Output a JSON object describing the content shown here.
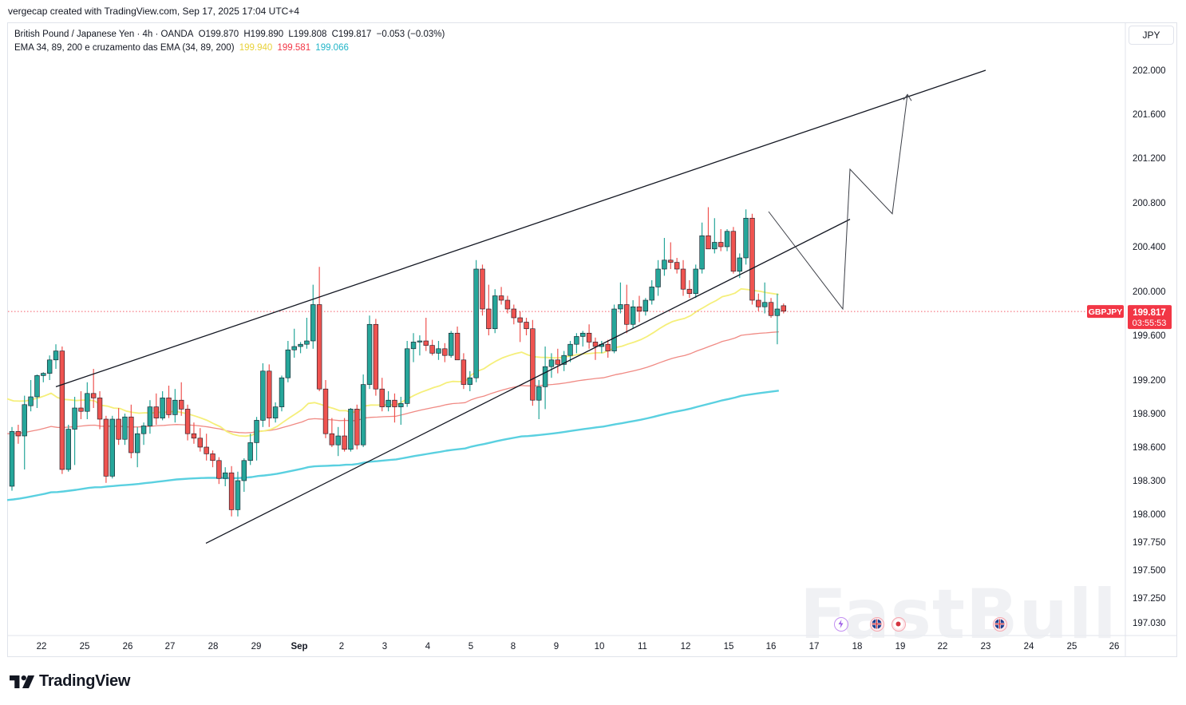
{
  "header": {
    "credit": "vergecap created with TradingView.com, Sep 17, 2025 17:04 UTC+4"
  },
  "legend": {
    "instrument": "British Pound / Japanese Yen · 4h · OANDA",
    "open": "O199.870",
    "high": "H199.890",
    "low": "L199.808",
    "close": "C199.817",
    "change": "−0.053 (−0.03%)",
    "indicator": "EMA 34, 89, 200 e cruzamento das EMA (34, 89, 200)",
    "ema34": "199.940",
    "ema89": "199.581",
    "ema200": "199.066"
  },
  "currency": "JPY",
  "price_tag": {
    "symbol": "GBPJPY",
    "price": "199.817",
    "countdown": "03:55:53"
  },
  "branding": {
    "logo_text": "TradingView",
    "watermark": "FastBull"
  },
  "colors": {
    "up": "#26a69a",
    "down": "#ef5350",
    "ema34": "#f5ef7a",
    "ema89": "#f08a84",
    "ema200": "#5ad0e0",
    "price_tag": "#f23645",
    "ema34_text": "#e8d23a",
    "ema89_text": "#f23645",
    "ema200_text": "#22b5c8"
  },
  "chart_data": {
    "type": "candlestick",
    "symbol": "GBPJPY",
    "timeframe": "4h",
    "y_ticks": [
      "202.000",
      "201.600",
      "201.200",
      "200.800",
      "200.400",
      "200.000",
      "199.600",
      "199.200",
      "198.900",
      "198.600",
      "198.300",
      "198.000",
      "197.750",
      "197.500",
      "197.250",
      "197.030"
    ],
    "x_ticks": [
      "22",
      "25",
      "26",
      "27",
      "28",
      "29",
      "Sep",
      "2",
      "3",
      "4",
      "5",
      "8",
      "9",
      "10",
      "11",
      "12",
      "15",
      "16",
      "17",
      "18",
      "19",
      "22",
      "23",
      "24",
      "25",
      "26"
    ],
    "candles": [
      {
        "o": 198.25,
        "h": 198.78,
        "l": 198.21,
        "c": 198.74
      },
      {
        "o": 198.74,
        "h": 198.8,
        "l": 198.63,
        "c": 198.7
      },
      {
        "o": 198.7,
        "h": 199.06,
        "l": 198.4,
        "c": 198.98
      },
      {
        "o": 198.97,
        "h": 199.2,
        "l": 198.92,
        "c": 199.05
      },
      {
        "o": 199.05,
        "h": 199.25,
        "l": 198.95,
        "c": 199.24
      },
      {
        "o": 199.24,
        "h": 199.27,
        "l": 199.18,
        "c": 199.26
      },
      {
        "o": 199.26,
        "h": 199.42,
        "l": 199.2,
        "c": 199.38
      },
      {
        "o": 199.38,
        "h": 199.52,
        "l": 199.3,
        "c": 199.46
      },
      {
        "o": 199.46,
        "h": 199.5,
        "l": 198.36,
        "c": 198.4
      },
      {
        "o": 198.4,
        "h": 198.8,
        "l": 198.38,
        "c": 198.76
      },
      {
        "o": 198.76,
        "h": 199.05,
        "l": 198.44,
        "c": 198.95
      },
      {
        "o": 198.95,
        "h": 199.1,
        "l": 198.85,
        "c": 198.92
      },
      {
        "o": 198.92,
        "h": 199.18,
        "l": 198.85,
        "c": 199.08
      },
      {
        "o": 199.08,
        "h": 199.3,
        "l": 198.95,
        "c": 199.04
      },
      {
        "o": 199.04,
        "h": 199.1,
        "l": 198.76,
        "c": 198.85
      },
      {
        "o": 198.85,
        "h": 198.88,
        "l": 198.28,
        "c": 198.34
      },
      {
        "o": 198.34,
        "h": 198.88,
        "l": 198.32,
        "c": 198.85
      },
      {
        "o": 198.85,
        "h": 198.95,
        "l": 198.62,
        "c": 198.67
      },
      {
        "o": 198.67,
        "h": 198.9,
        "l": 198.62,
        "c": 198.87
      },
      {
        "o": 198.87,
        "h": 198.98,
        "l": 198.5,
        "c": 198.55
      },
      {
        "o": 198.55,
        "h": 198.78,
        "l": 198.42,
        "c": 198.72
      },
      {
        "o": 198.72,
        "h": 198.82,
        "l": 198.62,
        "c": 198.79
      },
      {
        "o": 198.79,
        "h": 199.02,
        "l": 198.72,
        "c": 198.96
      },
      {
        "o": 198.96,
        "h": 199.08,
        "l": 198.8,
        "c": 198.86
      },
      {
        "o": 198.86,
        "h": 199.1,
        "l": 198.84,
        "c": 199.04
      },
      {
        "o": 199.04,
        "h": 199.15,
        "l": 198.86,
        "c": 198.89
      },
      {
        "o": 198.89,
        "h": 199.12,
        "l": 198.82,
        "c": 199.02
      },
      {
        "o": 199.02,
        "h": 199.18,
        "l": 198.88,
        "c": 198.94
      },
      {
        "o": 198.94,
        "h": 198.98,
        "l": 198.66,
        "c": 198.72
      },
      {
        "o": 198.72,
        "h": 198.82,
        "l": 198.63,
        "c": 198.68
      },
      {
        "o": 198.68,
        "h": 198.77,
        "l": 198.56,
        "c": 198.6
      },
      {
        "o": 198.6,
        "h": 198.72,
        "l": 198.48,
        "c": 198.54
      },
      {
        "o": 198.54,
        "h": 198.57,
        "l": 198.42,
        "c": 198.48
      },
      {
        "o": 198.48,
        "h": 198.51,
        "l": 198.27,
        "c": 198.32
      },
      {
        "o": 198.32,
        "h": 198.42,
        "l": 198.25,
        "c": 198.37
      },
      {
        "o": 198.37,
        "h": 198.43,
        "l": 197.98,
        "c": 198.04
      },
      {
        "o": 198.04,
        "h": 198.38,
        "l": 197.98,
        "c": 198.3
      },
      {
        "o": 198.3,
        "h": 198.5,
        "l": 198.2,
        "c": 198.48
      },
      {
        "o": 198.48,
        "h": 198.72,
        "l": 198.44,
        "c": 198.64
      },
      {
        "o": 198.64,
        "h": 198.87,
        "l": 198.48,
        "c": 198.84
      },
      {
        "o": 198.84,
        "h": 199.35,
        "l": 198.78,
        "c": 199.28
      },
      {
        "o": 199.28,
        "h": 199.34,
        "l": 198.78,
        "c": 198.86
      },
      {
        "o": 198.86,
        "h": 199.0,
        "l": 198.82,
        "c": 198.96
      },
      {
        "o": 198.96,
        "h": 199.24,
        "l": 198.92,
        "c": 199.22
      },
      {
        "o": 199.22,
        "h": 199.55,
        "l": 199.18,
        "c": 199.47
      },
      {
        "o": 199.47,
        "h": 199.66,
        "l": 199.4,
        "c": 199.5
      },
      {
        "o": 199.5,
        "h": 199.54,
        "l": 199.44,
        "c": 199.52
      },
      {
        "o": 199.52,
        "h": 199.76,
        "l": 199.48,
        "c": 199.55
      },
      {
        "o": 199.55,
        "h": 200.06,
        "l": 199.48,
        "c": 199.88
      },
      {
        "o": 199.88,
        "h": 200.22,
        "l": 199.1,
        "c": 199.12
      },
      {
        "o": 199.12,
        "h": 199.2,
        "l": 198.68,
        "c": 198.72
      },
      {
        "o": 198.72,
        "h": 198.86,
        "l": 198.6,
        "c": 198.62
      },
      {
        "o": 198.62,
        "h": 198.78,
        "l": 198.52,
        "c": 198.7
      },
      {
        "o": 198.7,
        "h": 198.86,
        "l": 198.56,
        "c": 198.58
      },
      {
        "o": 198.58,
        "h": 198.95,
        "l": 198.56,
        "c": 198.94
      },
      {
        "o": 198.94,
        "h": 198.98,
        "l": 198.58,
        "c": 198.62
      },
      {
        "o": 198.62,
        "h": 199.25,
        "l": 198.6,
        "c": 199.16
      },
      {
        "o": 199.16,
        "h": 199.78,
        "l": 199.12,
        "c": 199.7
      },
      {
        "o": 199.7,
        "h": 199.75,
        "l": 199.06,
        "c": 199.12
      },
      {
        "o": 199.12,
        "h": 199.22,
        "l": 198.92,
        "c": 198.96
      },
      {
        "o": 198.96,
        "h": 199.1,
        "l": 198.92,
        "c": 199.02
      },
      {
        "o": 199.02,
        "h": 199.08,
        "l": 198.82,
        "c": 198.96
      },
      {
        "o": 198.96,
        "h": 199.05,
        "l": 198.8,
        "c": 198.99
      },
      {
        "o": 198.99,
        "h": 199.55,
        "l": 198.96,
        "c": 199.48
      },
      {
        "o": 199.48,
        "h": 199.62,
        "l": 199.36,
        "c": 199.54
      },
      {
        "o": 199.54,
        "h": 199.6,
        "l": 199.42,
        "c": 199.55
      },
      {
        "o": 199.55,
        "h": 199.76,
        "l": 199.46,
        "c": 199.51
      },
      {
        "o": 199.51,
        "h": 199.56,
        "l": 199.42,
        "c": 199.44
      },
      {
        "o": 199.44,
        "h": 199.55,
        "l": 199.38,
        "c": 199.48
      },
      {
        "o": 199.48,
        "h": 199.53,
        "l": 199.36,
        "c": 199.42
      },
      {
        "o": 199.42,
        "h": 199.64,
        "l": 199.4,
        "c": 199.62
      },
      {
        "o": 199.62,
        "h": 199.68,
        "l": 199.4,
        "c": 199.38
      },
      {
        "o": 199.38,
        "h": 199.44,
        "l": 199.12,
        "c": 199.16
      },
      {
        "o": 199.16,
        "h": 199.28,
        "l": 199.1,
        "c": 199.22
      },
      {
        "o": 199.22,
        "h": 200.28,
        "l": 199.18,
        "c": 200.2
      },
      {
        "o": 200.2,
        "h": 200.24,
        "l": 199.78,
        "c": 199.84
      },
      {
        "o": 199.84,
        "h": 200.06,
        "l": 199.6,
        "c": 199.66
      },
      {
        "o": 199.66,
        "h": 200.02,
        "l": 199.62,
        "c": 199.96
      },
      {
        "o": 199.96,
        "h": 200.04,
        "l": 199.88,
        "c": 199.92
      },
      {
        "o": 199.92,
        "h": 199.96,
        "l": 199.8,
        "c": 199.84
      },
      {
        "o": 199.84,
        "h": 199.88,
        "l": 199.7,
        "c": 199.76
      },
      {
        "o": 199.76,
        "h": 199.82,
        "l": 199.54,
        "c": 199.72
      },
      {
        "o": 199.72,
        "h": 199.76,
        "l": 199.6,
        "c": 199.66
      },
      {
        "o": 199.66,
        "h": 199.74,
        "l": 198.97,
        "c": 199.02
      },
      {
        "o": 199.02,
        "h": 199.2,
        "l": 198.85,
        "c": 199.14
      },
      {
        "o": 199.14,
        "h": 199.5,
        "l": 198.94,
        "c": 199.32
      },
      {
        "o": 199.32,
        "h": 199.44,
        "l": 199.22,
        "c": 199.38
      },
      {
        "o": 199.38,
        "h": 199.48,
        "l": 199.26,
        "c": 199.34
      },
      {
        "o": 199.34,
        "h": 199.46,
        "l": 199.28,
        "c": 199.42
      },
      {
        "o": 199.42,
        "h": 199.55,
        "l": 199.36,
        "c": 199.52
      },
      {
        "o": 199.52,
        "h": 199.62,
        "l": 199.44,
        "c": 199.59
      },
      {
        "o": 199.59,
        "h": 199.64,
        "l": 199.5,
        "c": 199.62
      },
      {
        "o": 199.62,
        "h": 199.7,
        "l": 199.48,
        "c": 199.54
      },
      {
        "o": 199.54,
        "h": 199.58,
        "l": 199.38,
        "c": 199.5
      },
      {
        "o": 199.5,
        "h": 199.55,
        "l": 199.44,
        "c": 199.52
      },
      {
        "o": 199.52,
        "h": 199.56,
        "l": 199.4,
        "c": 199.46
      },
      {
        "o": 199.46,
        "h": 199.88,
        "l": 199.44,
        "c": 199.84
      },
      {
        "o": 199.84,
        "h": 200.08,
        "l": 199.8,
        "c": 199.88
      },
      {
        "o": 199.88,
        "h": 200.06,
        "l": 199.62,
        "c": 199.7
      },
      {
        "o": 199.7,
        "h": 199.92,
        "l": 199.66,
        "c": 199.86
      },
      {
        "o": 199.86,
        "h": 199.96,
        "l": 199.72,
        "c": 199.82
      },
      {
        "o": 199.82,
        "h": 199.94,
        "l": 199.78,
        "c": 199.92
      },
      {
        "o": 199.92,
        "h": 200.1,
        "l": 199.88,
        "c": 200.04
      },
      {
        "o": 200.04,
        "h": 200.28,
        "l": 199.96,
        "c": 200.2
      },
      {
        "o": 200.2,
        "h": 200.48,
        "l": 200.14,
        "c": 200.28
      },
      {
        "o": 200.28,
        "h": 200.44,
        "l": 200.2,
        "c": 200.26
      },
      {
        "o": 200.26,
        "h": 200.3,
        "l": 200.16,
        "c": 200.2
      },
      {
        "o": 200.2,
        "h": 200.28,
        "l": 199.96,
        "c": 200.02
      },
      {
        "o": 200.02,
        "h": 200.1,
        "l": 199.94,
        "c": 199.98
      },
      {
        "o": 199.98,
        "h": 200.24,
        "l": 199.94,
        "c": 200.2
      },
      {
        "o": 200.2,
        "h": 200.62,
        "l": 200.16,
        "c": 200.5
      },
      {
        "o": 200.5,
        "h": 200.76,
        "l": 200.4,
        "c": 200.38
      },
      {
        "o": 200.38,
        "h": 200.66,
        "l": 200.34,
        "c": 200.44
      },
      {
        "o": 200.44,
        "h": 200.56,
        "l": 200.36,
        "c": 200.4
      },
      {
        "o": 200.4,
        "h": 200.56,
        "l": 200.36,
        "c": 200.54
      },
      {
        "o": 200.54,
        "h": 200.58,
        "l": 200.16,
        "c": 200.18
      },
      {
        "o": 200.18,
        "h": 200.34,
        "l": 200.12,
        "c": 200.3
      },
      {
        "o": 200.3,
        "h": 200.74,
        "l": 200.24,
        "c": 200.66
      },
      {
        "o": 200.66,
        "h": 200.7,
        "l": 199.88,
        "c": 199.92
      },
      {
        "o": 199.92,
        "h": 199.98,
        "l": 199.82,
        "c": 199.86
      },
      {
        "o": 199.86,
        "h": 200.08,
        "l": 199.8,
        "c": 199.9
      },
      {
        "o": 199.9,
        "h": 199.94,
        "l": 199.76,
        "c": 199.78
      },
      {
        "o": 199.78,
        "h": 199.98,
        "l": 199.52,
        "c": 199.84
      },
      {
        "o": 199.87,
        "h": 199.89,
        "l": 199.8,
        "c": 199.82
      }
    ],
    "ema": [
      {
        "name": "EMA 34",
        "value": 199.94
      },
      {
        "name": "EMA 89",
        "value": 199.581
      },
      {
        "name": "EMA 200",
        "value": 199.066
      }
    ],
    "last_price": 199.817,
    "drawings": [
      {
        "type": "trendline",
        "role": "upper-channel",
        "from": {
          "x": "Aug 22",
          "y": 199.14
        },
        "to": {
          "x": "Sep 23",
          "y": 202.0
        }
      },
      {
        "type": "trendline",
        "role": "lower-channel",
        "from": {
          "x": "Aug 27",
          "y": 197.74
        },
        "to": {
          "x": "Sep 18",
          "y": 200.65
        }
      },
      {
        "type": "projection-path",
        "points": [
          {
            "x": "Sep 16",
            "y": 200.72
          },
          {
            "x": "Sep 17",
            "y": 199.84
          },
          {
            "x": "Sep 18",
            "y": 201.1
          },
          {
            "x": "Sep 19",
            "y": 200.7
          },
          {
            "x": "Sep 19",
            "y": 201.78
          }
        ]
      }
    ]
  }
}
